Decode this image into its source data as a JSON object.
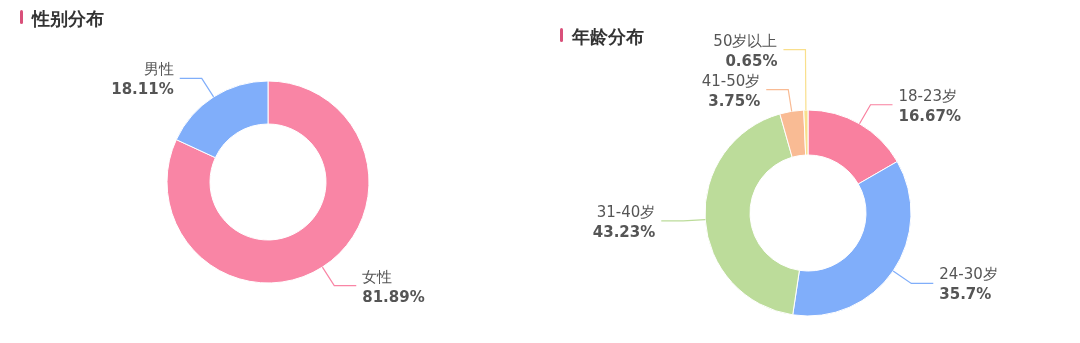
{
  "chart_data": [
    {
      "type": "donut",
      "title": "性别分布",
      "categories": [
        "女性",
        "男性"
      ],
      "values": [
        81.89,
        18.11
      ],
      "colors": [
        "#f985a5",
        "#80aefa"
      ],
      "value_labels": [
        "81.89%",
        "18.11%"
      ]
    },
    {
      "type": "donut",
      "title": "年龄分布",
      "categories": [
        "18-23岁",
        "24-30岁",
        "31-40岁",
        "41-50岁",
        "50岁以上"
      ],
      "values": [
        16.67,
        35.7,
        43.23,
        3.75,
        0.65
      ],
      "colors": [
        "#f9809f",
        "#80aefa",
        "#bcdc9a",
        "#f9bb94",
        "#f9df8c"
      ],
      "value_labels": [
        "16.67%",
        "35.7%",
        "43.23%",
        "3.75%",
        "0.65%"
      ]
    }
  ]
}
